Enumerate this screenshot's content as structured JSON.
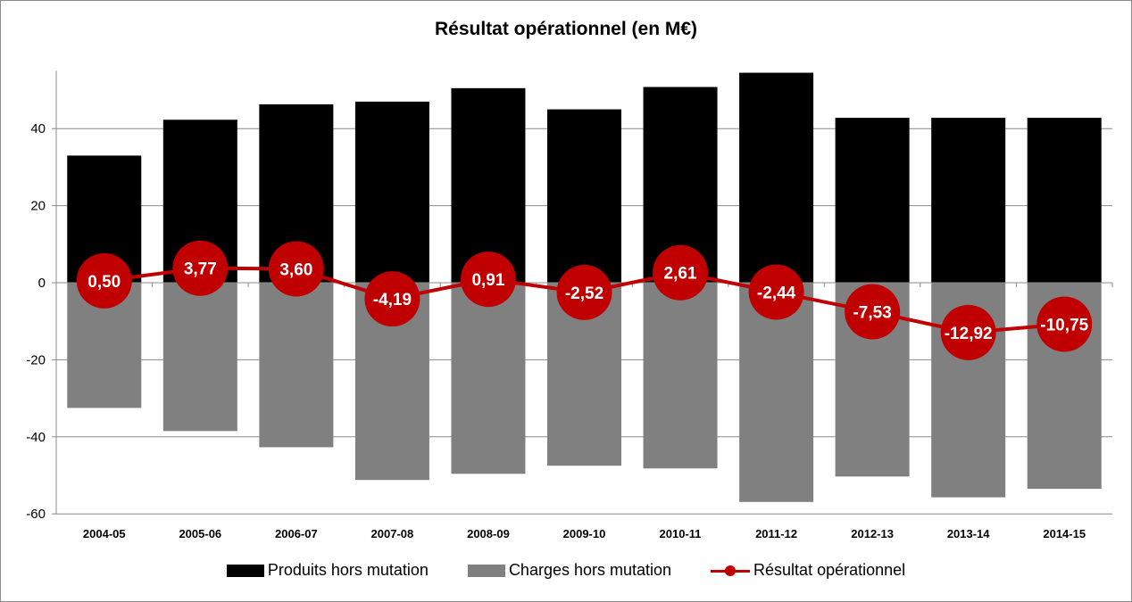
{
  "chart_data": {
    "type": "bar",
    "title": "Résultat opérationnel (en M€)",
    "categories": [
      "2004-05",
      "2005-06",
      "2006-07",
      "2007-08",
      "2008-09",
      "2009-10",
      "2010-11",
      "2011-12",
      "2012-13",
      "2013-14",
      "2014-15"
    ],
    "ylim": [
      -60,
      55
    ],
    "yticks": [
      40,
      20,
      0,
      -20,
      -40,
      -60
    ],
    "grid": true,
    "legend_position": "bottom",
    "series": [
      {
        "name": "Produits hors mutation",
        "kind": "bar",
        "color": "#000000",
        "values": [
          33.0,
          42.3,
          46.3,
          47.0,
          50.5,
          45.0,
          50.8,
          54.5,
          42.8,
          42.8,
          42.8
        ]
      },
      {
        "name": "Charges hors mutation",
        "kind": "bar",
        "color": "#808080",
        "values": [
          -32.5,
          -38.5,
          -42.7,
          -51.2,
          -49.6,
          -47.5,
          -48.2,
          -56.9,
          -50.3,
          -55.7,
          -53.5
        ]
      },
      {
        "name": "Résultat opérationnel",
        "kind": "line",
        "color": "#c00000",
        "values": [
          0.5,
          3.77,
          3.6,
          -4.19,
          0.91,
          -2.52,
          2.61,
          -2.44,
          -7.53,
          -12.92,
          -10.75
        ],
        "labels": [
          "0,50",
          "3,77",
          "3,60",
          "-4,19",
          "0,91",
          "-2,52",
          "2,61",
          "-2,44",
          "-7,53",
          "-12,92",
          "-10,75"
        ]
      }
    ]
  }
}
